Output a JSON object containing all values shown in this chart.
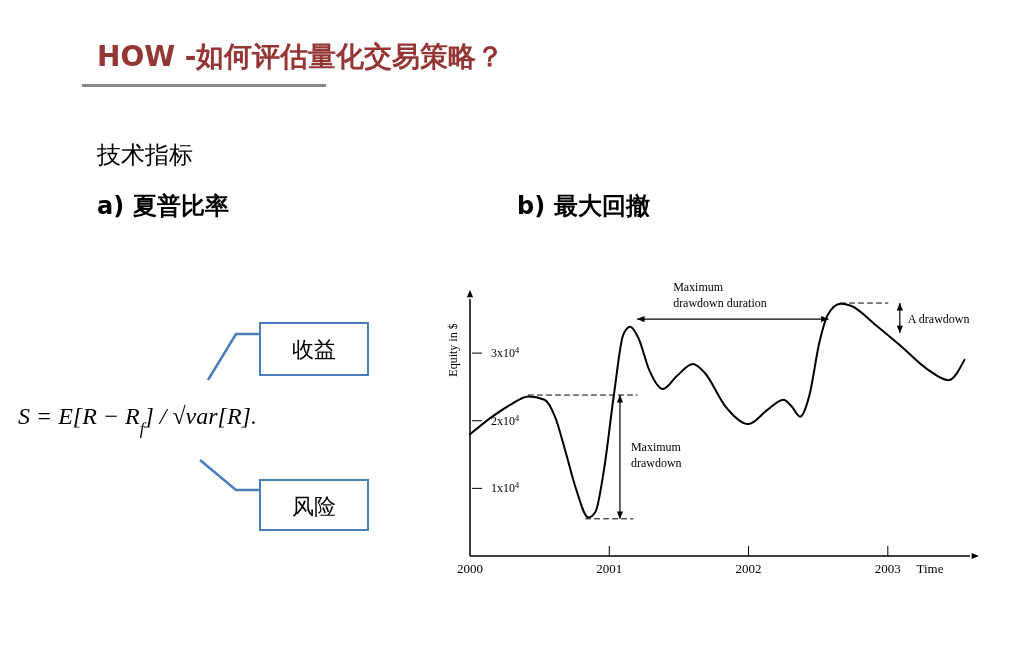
{
  "chart_data": [
    {
      "type": "other",
      "title": "HOW -如何评估量化交易策略？",
      "subtitle": "技术指标",
      "annotations": [
        "a)  夏普比率",
        "S = E[R − R$_{f}$] / √var[R].",
        "收益",
        "风险"
      ]
    },
    {
      "type": "line",
      "title": "b)  最大回撤",
      "xlabel": "Time",
      "ylabel": "Equity in $",
      "xlim": [
        2000,
        2003.59
      ],
      "ylim": [
        0,
        38000
      ],
      "xticks": [
        2000,
        2001,
        2002,
        2003
      ],
      "yticks": [
        {
          "value": 10000,
          "label": "1x10$^{4}$"
        },
        {
          "value": 20000,
          "label": "2x10$^{4}$"
        },
        {
          "value": 30000,
          "label": "3x10$^{4}$"
        }
      ],
      "grid": false,
      "series": [
        {
          "color": "#000000",
          "line_style": "solid",
          "x": [
            2000,
            2000.16,
            2000.285,
            2000.42,
            2000.535,
            2000.61,
            2000.685,
            2000.76,
            2000.85,
            2000.9,
            2000.96,
            2001.035,
            2001.1,
            2001.15,
            2001.21,
            2001.285,
            2001.385,
            2001.485,
            2001.6,
            2001.685,
            2001.835,
            2002,
            2002.135,
            2002.25,
            2002.31,
            2002.37,
            2002.435,
            2002.51,
            2002.57,
            2002.66,
            2002.735,
            2002.91,
            2003.085,
            2003.285,
            2003.435,
            2003.55
          ],
          "values": [
            18000,
            20600,
            22300,
            23600,
            23100,
            20600,
            15500,
            10000,
            5700,
            6500,
            12500,
            24100,
            32700,
            33900,
            32200,
            27600,
            24700,
            26600,
            28400,
            27100,
            22100,
            19500,
            21600,
            23100,
            22100,
            20600,
            23600,
            31700,
            35700,
            37300,
            37000,
            34200,
            31200,
            27600,
            26000,
            29000
          ]
        },
        {
          "color": "#000000",
          "line_style": "dashed",
          "x": [
            2000.42,
            2001.2
          ],
          "values": [
            23800,
            23800
          ]
        },
        {
          "color": "#000000",
          "line_style": "dashed",
          "x": [
            2000.83,
            2001.17
          ],
          "values": [
            5500,
            5500
          ]
        },
        {
          "color": "#000000",
          "line_style": "dashed",
          "x": [
            2002.66,
            2003.0
          ],
          "values": [
            37400,
            37400
          ]
        }
      ],
      "annotations": [
        "Maximum\ndrawdown duration",
        "Maximum\ndrawdown",
        "A drawdown"
      ]
    }
  ]
}
